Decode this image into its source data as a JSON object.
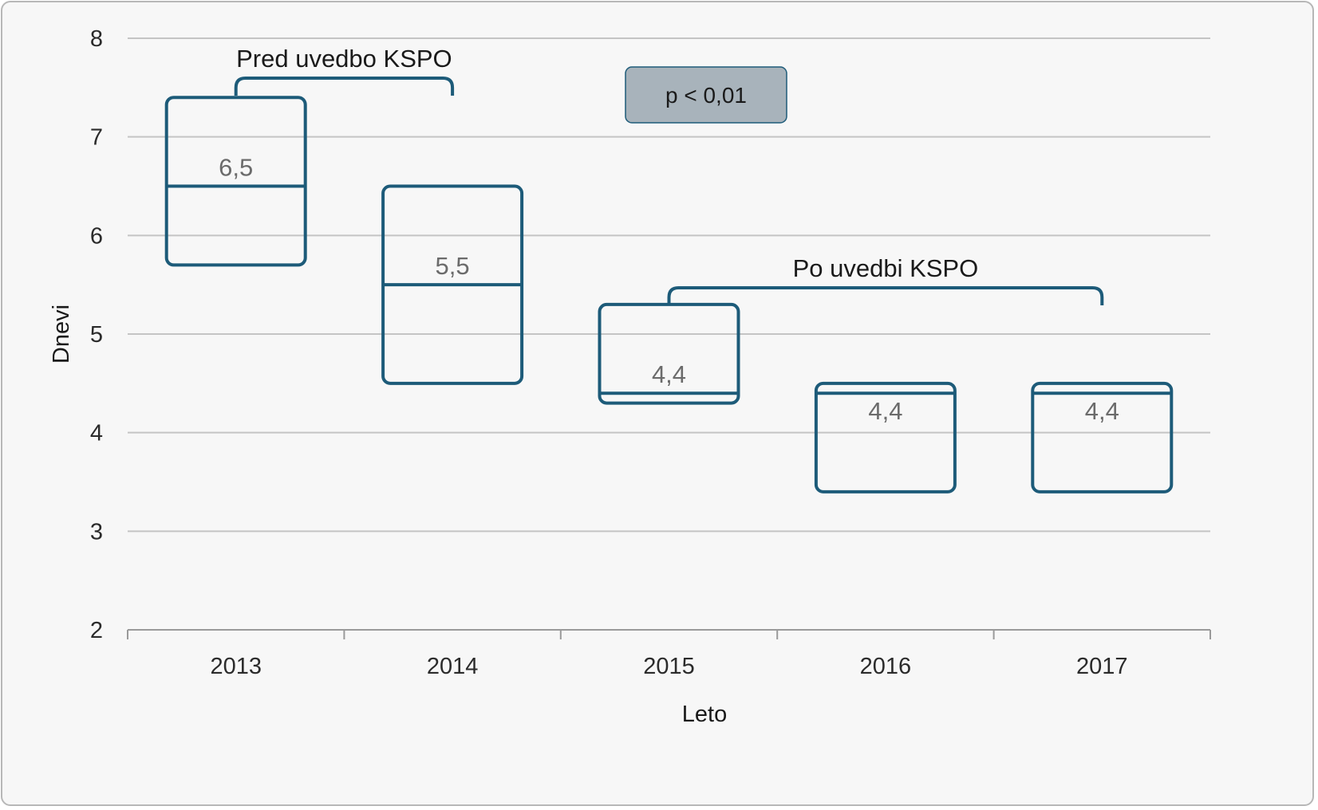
{
  "chart_data": {
    "type": "box",
    "xlabel": "Leto",
    "ylabel": "Dnevi",
    "ylim": [
      2,
      8
    ],
    "yticks": [
      "2",
      "3",
      "4",
      "5",
      "6",
      "7",
      "8"
    ],
    "categories": [
      "2013",
      "2014",
      "2015",
      "2016",
      "2017"
    ],
    "boxes": [
      {
        "year": "2013",
        "q1": 5.7,
        "median": 6.5,
        "q3": 7.4,
        "label": "6,5"
      },
      {
        "year": "2014",
        "q1": 4.5,
        "median": 5.5,
        "q3": 6.5,
        "label": "5,5"
      },
      {
        "year": "2015",
        "q1": 4.3,
        "median": 4.4,
        "q3": 5.3,
        "label": "4,4"
      },
      {
        "year": "2016",
        "q1": 3.4,
        "median": 4.4,
        "q3": 4.5,
        "label": "4,4"
      },
      {
        "year": "2017",
        "q1": 3.4,
        "median": 4.4,
        "q3": 4.5,
        "label": "4,4"
      }
    ],
    "groups": [
      {
        "label": "Pred uvedbo KSPO",
        "from": "2013",
        "to": "2014"
      },
      {
        "label": "Po uvedbi KSPO",
        "from": "2015",
        "to": "2017"
      }
    ],
    "annotation": "p < 0,01",
    "grid": true,
    "colors": {
      "box": "#1d5b79",
      "grid": "#c4c4c4",
      "axis": "#9a9a9a",
      "value_label": "#6b6b6b",
      "annotation_fill": "#a8b3bb",
      "annotation_border": "#1d5b79",
      "text": "#1a1a1a",
      "background": "#f7f7f7"
    }
  }
}
